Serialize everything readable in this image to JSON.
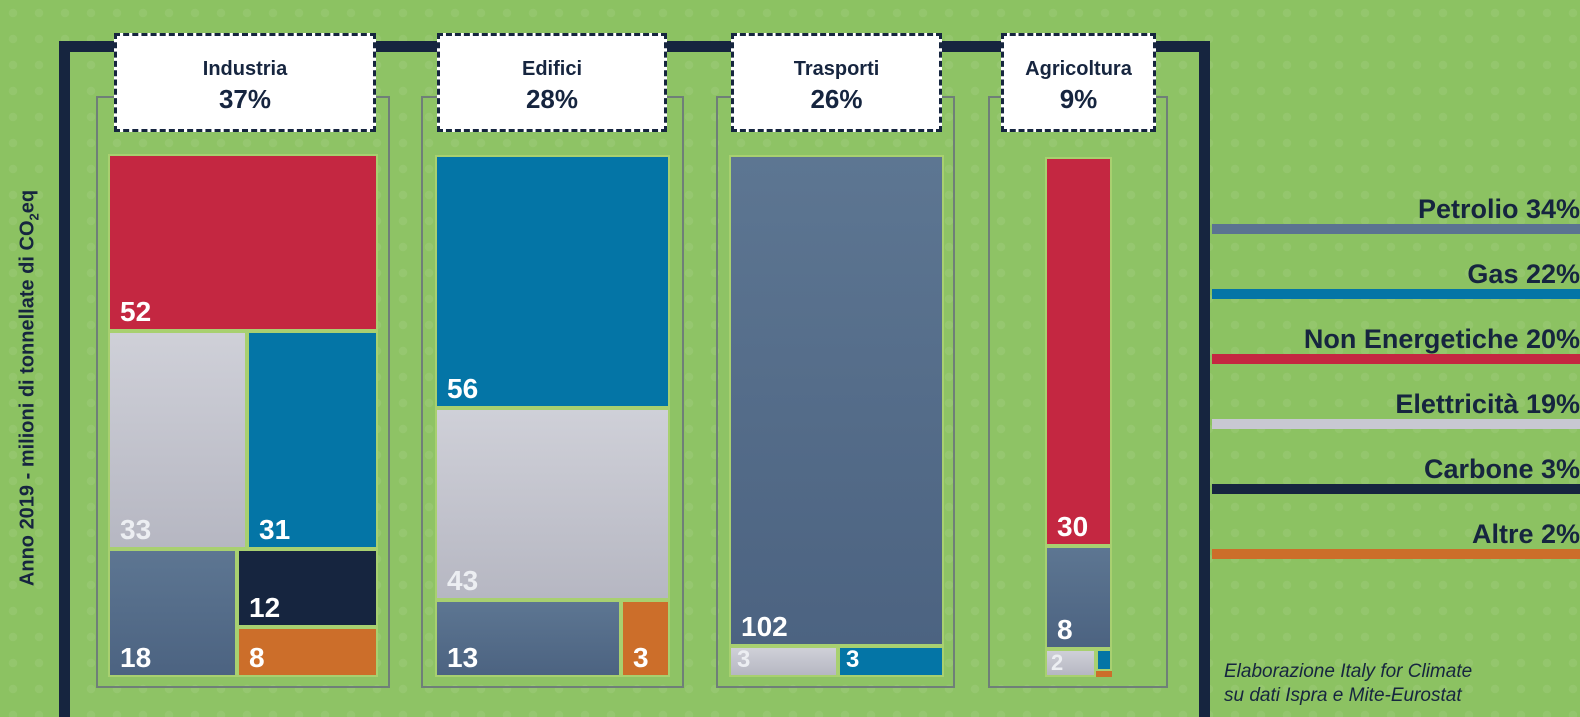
{
  "chart_data": {
    "type": "treemap",
    "ylabel": "Anno 2019 - milioni di tonnellate di CO2eq",
    "sectors": [
      {
        "name": "Industria",
        "share": "37%",
        "blocks": [
          {
            "source": "Non Energetiche",
            "value": 52
          },
          {
            "source": "Elettricità",
            "value": 33
          },
          {
            "source": "Gas",
            "value": 31
          },
          {
            "source": "Petrolio",
            "value": 18
          },
          {
            "source": "Carbone",
            "value": 12
          },
          {
            "source": "Altre",
            "value": 8
          }
        ]
      },
      {
        "name": "Edifici",
        "share": "28%",
        "blocks": [
          {
            "source": "Gas",
            "value": 56
          },
          {
            "source": "Elettricità",
            "value": 43
          },
          {
            "source": "Petrolio",
            "value": 13
          },
          {
            "source": "Altre",
            "value": 3
          }
        ]
      },
      {
        "name": "Trasporti",
        "share": "26%",
        "blocks": [
          {
            "source": "Petrolio",
            "value": 102
          },
          {
            "source": "Elettricità",
            "value": 3
          },
          {
            "source": "Gas",
            "value": 3
          }
        ]
      },
      {
        "name": "Agricoltura",
        "share": "9%",
        "blocks": [
          {
            "source": "Non Energetiche",
            "value": 30
          },
          {
            "source": "Petrolio",
            "value": 8
          },
          {
            "source": "Elettricità",
            "value": 2
          },
          {
            "source": "Gas",
            "value": null
          },
          {
            "source": "Altre",
            "value": null
          }
        ]
      }
    ],
    "legend": [
      {
        "label": "Petrolio 34%",
        "color": "#5b7391"
      },
      {
        "label": "Gas 22%",
        "color": "#0475a6"
      },
      {
        "label": "Non Energetiche 20%",
        "color": "#c42741"
      },
      {
        "label": "Elettricità 19%",
        "color": "#c8c8d2"
      },
      {
        "label": "Carbone 3%",
        "color": "#16253f"
      },
      {
        "label": "Altre 2%",
        "color": "#cc6e2a"
      }
    ],
    "source_note": [
      "Elaborazione Italy for Climate",
      "su dati Ispra e Mite-Eurostat"
    ]
  }
}
